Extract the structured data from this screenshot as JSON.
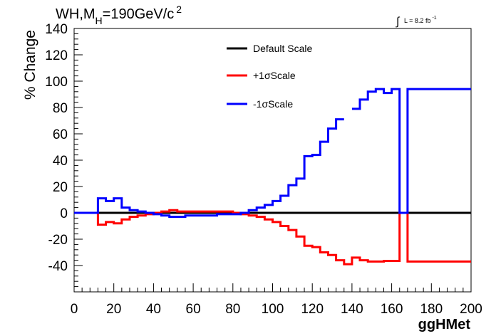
{
  "chart_data": {
    "type": "line",
    "title_main": "WH,M",
    "title_sub": "H",
    "title_rest": "=190GeV/c",
    "title_sup": "2",
    "lumi_text": "L = 8.2 fb",
    "lumi_sup": "-1",
    "xlabel": "ggHMet",
    "ylabel": "% Change",
    "xlim": [
      0,
      200
    ],
    "ylim": [
      -60,
      140
    ],
    "x_ticks": [
      "0",
      "20",
      "40",
      "60",
      "80",
      "100",
      "120",
      "140",
      "160",
      "180",
      "200"
    ],
    "y_ticks": [
      "140",
      "120",
      "100",
      "80",
      "60",
      "40",
      "20",
      "0",
      "-20",
      "-40"
    ],
    "legend_position": "top-center",
    "grid": false,
    "series": [
      {
        "name": "Default Scale",
        "color": "#000000",
        "x": [
          0,
          200
        ],
        "values": [
          0,
          0
        ]
      },
      {
        "name": "+1σScale",
        "color": "#ff0000",
        "x": [
          0,
          12,
          16,
          20,
          24,
          28,
          32,
          36,
          40,
          44,
          48,
          52,
          56,
          60,
          64,
          68,
          72,
          76,
          80,
          84,
          88,
          92,
          96,
          100,
          104,
          108,
          112,
          116,
          120,
          124,
          128,
          132,
          136,
          140,
          144,
          148,
          152,
          156,
          160,
          164,
          166,
          168,
          200
        ],
        "values": [
          0,
          -9,
          -7,
          -8,
          -5,
          -3,
          -2,
          -1,
          0,
          1,
          2,
          1,
          1,
          1,
          1,
          1,
          1,
          1,
          0,
          -1,
          -2,
          -3,
          -5,
          -7,
          -10,
          -13,
          -18,
          -25,
          -26,
          -30,
          -32,
          -36,
          -39,
          -34,
          -36,
          -37,
          -37,
          -36.5,
          -36.5,
          0,
          0,
          -37,
          -37
        ]
      },
      {
        "name": "-1σScale",
        "color": "#0000ff",
        "x": [
          0,
          12,
          16,
          20,
          24,
          28,
          32,
          36,
          40,
          44,
          48,
          52,
          56,
          60,
          64,
          68,
          72,
          76,
          80,
          84,
          88,
          92,
          96,
          100,
          104,
          108,
          112,
          116,
          120,
          124,
          128,
          132,
          136,
          140,
          144,
          148,
          152,
          156,
          160,
          164,
          166,
          168,
          200
        ],
        "values": [
          0,
          11,
          9,
          11,
          4,
          2,
          1,
          0,
          -1,
          -2,
          -3,
          -3,
          -2,
          -2,
          -2,
          -2,
          -1,
          -1,
          -1,
          0,
          2,
          4,
          6,
          9,
          13,
          21,
          26,
          43,
          44,
          54,
          64,
          71,
          null,
          79,
          86,
          92,
          94,
          91,
          94,
          0,
          0,
          94,
          94
        ]
      }
    ]
  }
}
